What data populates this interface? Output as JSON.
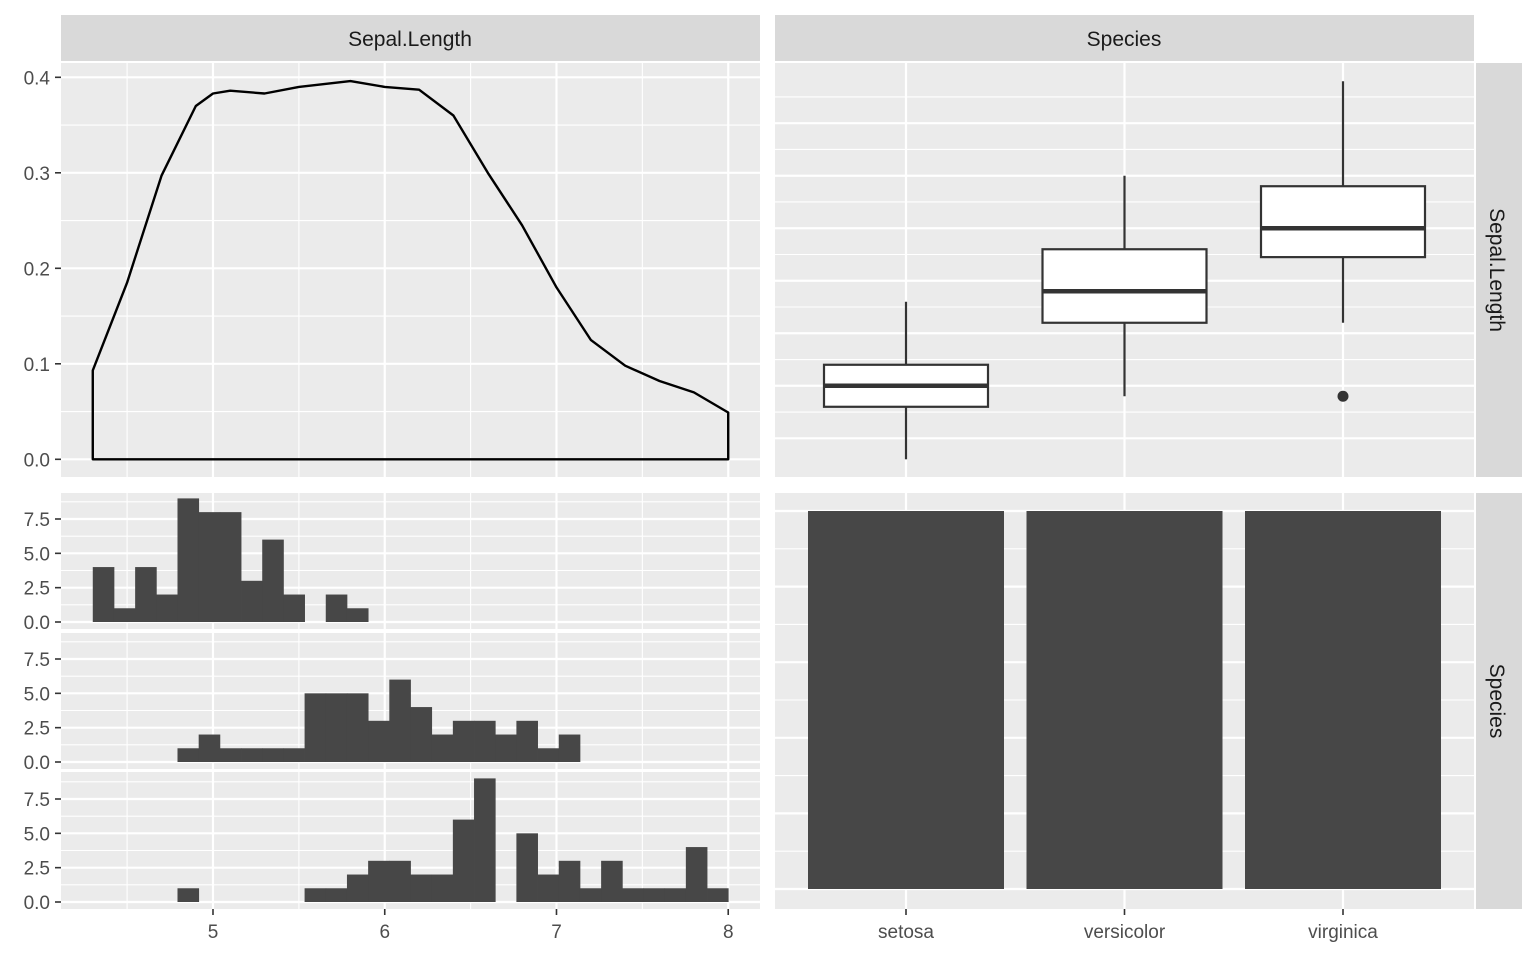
{
  "colors": {
    "panel_background": "#ebebeb",
    "strip_background": "#d9d9d9",
    "grid": "#ffffff",
    "bar_fill": "#474747",
    "line": "#000000",
    "box_fill": "#ffffff",
    "box_stroke": "#333333"
  },
  "strips": {
    "col1": "Sepal.Length",
    "col2": "Species",
    "row1": "Sepal.Length",
    "row2": "Species"
  },
  "chart_data": [
    {
      "type": "line",
      "panel": "Sepal.Length vs Sepal.Length (density)",
      "x": [
        4.3,
        4.5,
        4.7,
        4.9,
        5.0,
        5.1,
        5.3,
        5.5,
        5.8,
        6.0,
        6.2,
        6.4,
        6.6,
        6.8,
        7.0,
        7.2,
        7.4,
        7.6,
        7.8,
        8.0
      ],
      "y": [
        0.093,
        0.185,
        0.297,
        0.37,
        0.383,
        0.386,
        0.383,
        0.39,
        0.396,
        0.39,
        0.387,
        0.36,
        0.3,
        0.245,
        0.18,
        0.125,
        0.098,
        0.082,
        0.07,
        0.049
      ],
      "xlim": [
        4.3,
        8.0
      ],
      "ylim": [
        0,
        0.4
      ],
      "y_ticks": [
        "0.0",
        "0.1",
        "0.2",
        "0.3",
        "0.4"
      ]
    },
    {
      "type": "box",
      "panel": "Species vs Sepal.Length",
      "categories": [
        "setosa",
        "versicolor",
        "virginica"
      ],
      "boxes": [
        {
          "min": 4.3,
          "q1": 4.8,
          "median": 5.0,
          "q3": 5.2,
          "max": 5.8,
          "outliers": []
        },
        {
          "min": 4.9,
          "q1": 5.6,
          "median": 5.9,
          "q3": 6.3,
          "max": 7.0,
          "outliers": []
        },
        {
          "min": 5.6,
          "q1": 6.225,
          "median": 6.5,
          "q3": 6.9,
          "max": 7.9,
          "outliers": [
            4.9
          ]
        }
      ],
      "ylim": [
        4.3,
        7.9
      ]
    },
    {
      "type": "bar",
      "panel": "Sepal.Length by Species (histograms)",
      "x_ticks": [
        "5",
        "6",
        "7",
        "8"
      ],
      "y_ticks": [
        "0.0",
        "2.5",
        "5.0",
        "7.5"
      ],
      "xlim": [
        4.3,
        8.0
      ],
      "bin_start": 4.3,
      "bin_width": 0.12333,
      "series": [
        {
          "values": [
            4,
            1,
            4,
            2,
            9,
            8,
            8,
            3,
            6,
            2,
            0,
            2,
            1,
            0,
            0,
            0,
            0,
            0,
            0,
            0,
            0,
            0,
            0,
            0,
            0,
            0,
            0,
            0,
            0,
            0
          ]
        },
        {
          "values": [
            0,
            0,
            0,
            0,
            1,
            2,
            1,
            1,
            1,
            1,
            5,
            5,
            5,
            3,
            6,
            4,
            2,
            3,
            3,
            2,
            3,
            1,
            2,
            0,
            0,
            0,
            0,
            0,
            0,
            0
          ]
        },
        {
          "values": [
            0,
            0,
            0,
            0,
            1,
            0,
            0,
            0,
            0,
            0,
            1,
            1,
            2,
            3,
            3,
            2,
            2,
            6,
            9,
            0,
            5,
            2,
            3,
            1,
            3,
            1,
            1,
            1,
            4,
            1
          ]
        }
      ]
    },
    {
      "type": "bar",
      "panel": "Species vs Species",
      "categories": [
        "setosa",
        "versicolor",
        "virginica"
      ],
      "values": [
        50,
        50,
        50
      ],
      "x_ticks": [
        "setosa",
        "versicolor",
        "virginica"
      ]
    }
  ]
}
